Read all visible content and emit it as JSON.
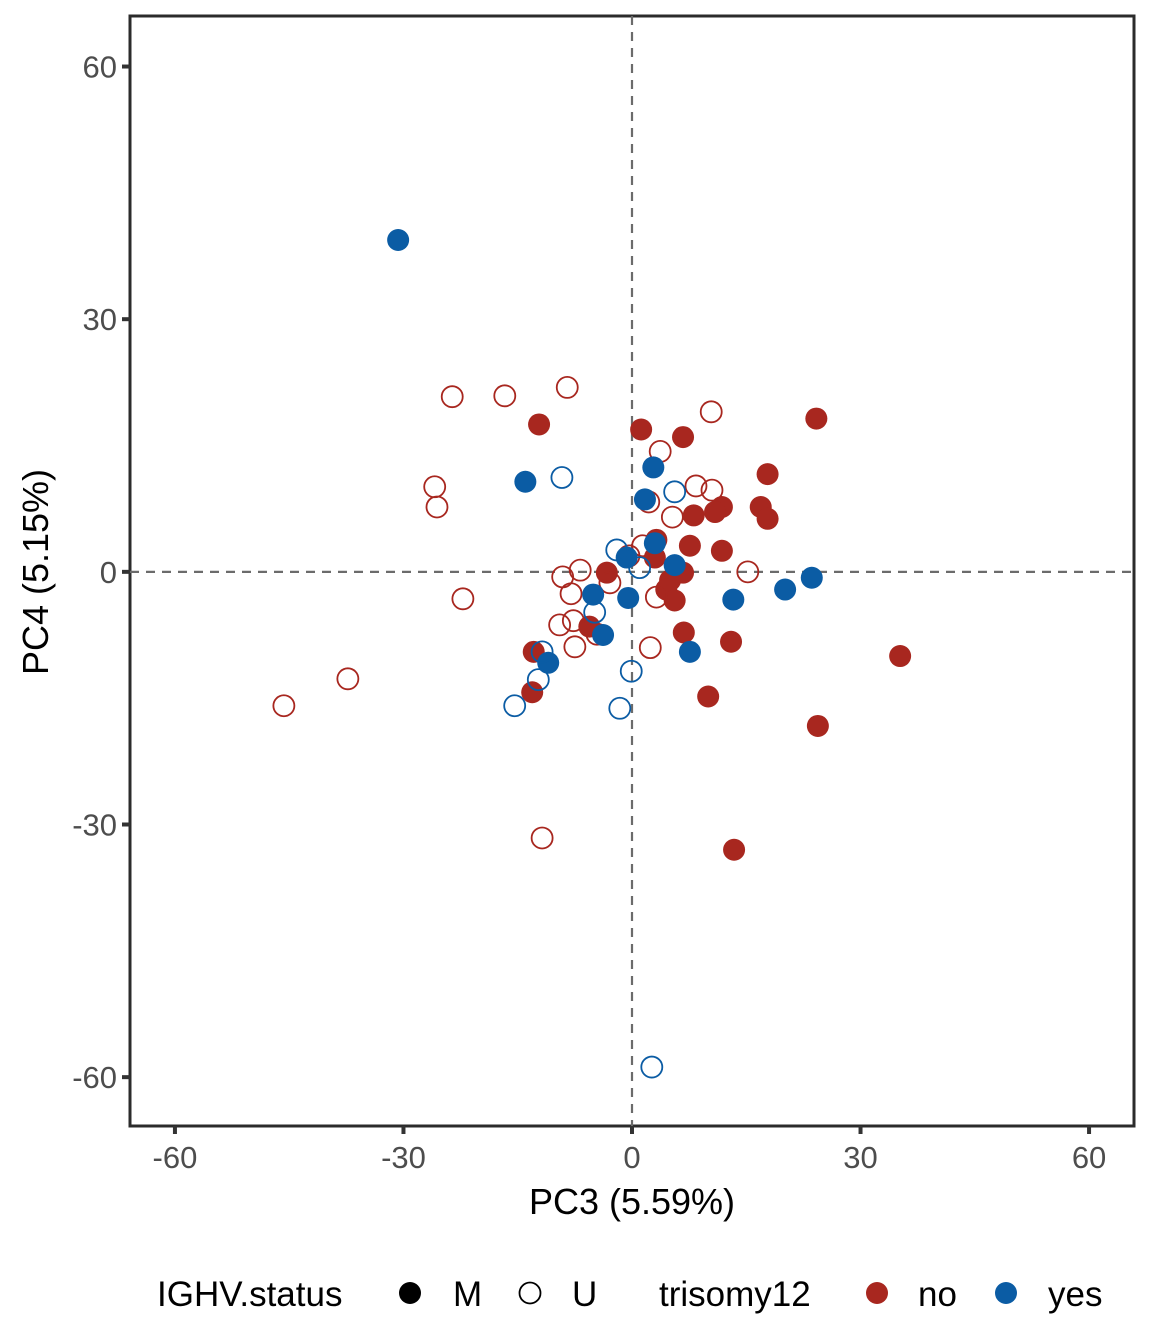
{
  "chart_data": {
    "type": "scatter",
    "xlabel": "PC3 (5.59%)",
    "ylabel": "PC4 (5.15%)",
    "xlim": [
      -65.9,
      65.9
    ],
    "ylim": [
      -65.8,
      66.0
    ],
    "xticks": [
      -60,
      -30,
      0,
      30,
      60
    ],
    "yticks": [
      -60,
      -30,
      0,
      30,
      60
    ],
    "xtick_labels": [
      "-60",
      "-30",
      "0",
      "30",
      "60"
    ],
    "ytick_labels": [
      "-60",
      "-30",
      "0",
      "30",
      "60"
    ],
    "reference_lines": {
      "x": 0,
      "y": 0,
      "style": "dashed"
    },
    "grid": false,
    "legend": {
      "placement": "bottom",
      "shape_title": "IGHV.status",
      "shape_entries": [
        {
          "label": "M",
          "fill": "filled"
        },
        {
          "label": "U",
          "fill": "open"
        }
      ],
      "color_title": "trisomy12",
      "color_entries": [
        {
          "label": "no",
          "color": "#A8271F"
        },
        {
          "label": "yes",
          "color": "#0B5CA4"
        }
      ]
    },
    "series": [
      {
        "name": "M / no",
        "shape": "M",
        "color": "#A8271F",
        "points": [
          [
            -12.2,
            17.5
          ],
          [
            1.2,
            16.9
          ],
          [
            6.7,
            16.0
          ],
          [
            24.2,
            18.2
          ],
          [
            17.8,
            11.6
          ],
          [
            16.9,
            7.7
          ],
          [
            17.8,
            6.3
          ],
          [
            11.8,
            7.7
          ],
          [
            10.9,
            7.1
          ],
          [
            8.1,
            6.7
          ],
          [
            11.8,
            2.5
          ],
          [
            7.6,
            3.1
          ],
          [
            3.2,
            3.8
          ],
          [
            -3.3,
            -0.1
          ],
          [
            3.0,
            1.7
          ],
          [
            5.0,
            -1.0
          ],
          [
            6.7,
            -0.1
          ],
          [
            4.5,
            -2.1
          ],
          [
            5.6,
            -3.4
          ],
          [
            -5.6,
            -6.5
          ],
          [
            -12.9,
            -9.5
          ],
          [
            -13.1,
            -14.3
          ],
          [
            6.8,
            -7.2
          ],
          [
            13.0,
            -8.3
          ],
          [
            10.0,
            -14.8
          ],
          [
            35.2,
            -10.0
          ],
          [
            24.4,
            -18.3
          ],
          [
            13.4,
            -33.0
          ]
        ]
      },
      {
        "name": "U / no",
        "shape": "U",
        "color": "#A8271F",
        "points": [
          [
            -23.6,
            20.8
          ],
          [
            -16.7,
            20.9
          ],
          [
            -8.5,
            21.9
          ],
          [
            10.4,
            19.0
          ],
          [
            3.7,
            14.3
          ],
          [
            -25.9,
            10.1
          ],
          [
            -25.6,
            7.7
          ],
          [
            8.4,
            10.2
          ],
          [
            10.5,
            9.7
          ],
          [
            5.3,
            6.5
          ],
          [
            2.2,
            8.3
          ],
          [
            -22.2,
            -3.2
          ],
          [
            -6.8,
            0.2
          ],
          [
            -9.1,
            -0.6
          ],
          [
            15.2,
            0.0
          ],
          [
            1.4,
            3.1
          ],
          [
            -0.4,
            1.9
          ],
          [
            -2.9,
            -1.3
          ],
          [
            -8.0,
            -2.6
          ],
          [
            -9.5,
            -6.3
          ],
          [
            -7.5,
            -8.9
          ],
          [
            -4.6,
            -7.4
          ],
          [
            -7.7,
            -5.8
          ],
          [
            3.2,
            -3.0
          ],
          [
            2.4,
            -9.0
          ],
          [
            -37.3,
            -12.7
          ],
          [
            -45.7,
            -15.9
          ],
          [
            -11.8,
            -31.6
          ]
        ]
      },
      {
        "name": "M / yes",
        "shape": "M",
        "color": "#0B5CA4",
        "points": [
          [
            -30.7,
            39.4
          ],
          [
            -14.0,
            10.7
          ],
          [
            2.8,
            12.4
          ],
          [
            1.7,
            8.6
          ],
          [
            3.0,
            3.4
          ],
          [
            -0.7,
            1.7
          ],
          [
            -5.1,
            -2.7
          ],
          [
            -0.5,
            -3.1
          ],
          [
            -3.8,
            -7.5
          ],
          [
            -11.0,
            -10.8
          ],
          [
            7.6,
            -9.5
          ],
          [
            13.3,
            -3.3
          ],
          [
            20.1,
            -2.1
          ],
          [
            23.6,
            -0.7
          ],
          [
            5.6,
            0.8
          ]
        ]
      },
      {
        "name": "U / yes",
        "shape": "U",
        "color": "#0B5CA4",
        "points": [
          [
            -9.2,
            11.2
          ],
          [
            5.6,
            9.5
          ],
          [
            -2.0,
            2.6
          ],
          [
            1.0,
            0.5
          ],
          [
            -4.9,
            -4.8
          ],
          [
            -11.8,
            -9.5
          ],
          [
            -12.3,
            -12.8
          ],
          [
            -15.4,
            -15.9
          ],
          [
            -0.1,
            -11.8
          ],
          [
            -1.6,
            -16.2
          ],
          [
            2.6,
            -58.8
          ]
        ]
      }
    ]
  }
}
